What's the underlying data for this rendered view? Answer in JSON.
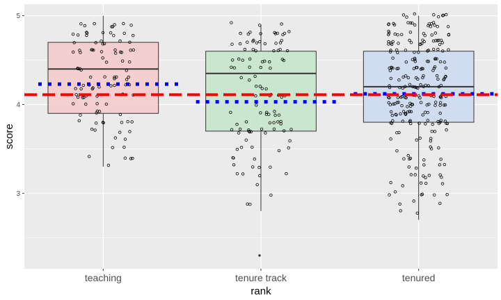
{
  "chart_data": {
    "type": "boxplot",
    "xlabel": "rank",
    "ylabel": "score",
    "ylim": [
      2.15,
      5.13
    ],
    "y_ticks": [
      3,
      4,
      5
    ],
    "y_tick_labels": [
      "3",
      "4",
      "5"
    ],
    "categories": [
      "teaching",
      "tenure track",
      "tenured"
    ],
    "boxes": [
      {
        "category": "teaching",
        "whisker_low": 3.3,
        "q1": 3.9,
        "median": 4.4,
        "q3": 4.7,
        "whisker_high": 5.0,
        "fill": "#f4cccc",
        "n_points": 102
      },
      {
        "category": "tenure track",
        "whisker_low": 2.8,
        "q1": 3.7,
        "median": 4.35,
        "q3": 4.6,
        "whisker_high": 4.9,
        "fill": "#c6e6cc",
        "n_points": 108
      },
      {
        "category": "tenured",
        "whisker_low": 2.7,
        "q1": 3.8,
        "median": 4.2,
        "q3": 4.6,
        "whisker_high": 5.0,
        "fill": "#cddaf0",
        "n_points": 253
      }
    ],
    "outliers": [
      {
        "category": "tenure track",
        "value": 2.3
      }
    ],
    "reference_lines": {
      "overall_mean": {
        "value": 4.11,
        "color": "#ff0000",
        "style": "dashed"
      },
      "group_means": [
        {
          "category": "teaching",
          "value": 4.23,
          "color": "#0000ff",
          "style": "dotted"
        },
        {
          "category": "tenure track",
          "value": 4.03,
          "color": "#0000ff",
          "style": "dotted"
        },
        {
          "category": "tenured",
          "value": 4.12,
          "color": "#0000ff",
          "style": "dotted"
        }
      ]
    },
    "grid": true,
    "panel_background": "#ebebeb",
    "point_color": "#000000"
  }
}
